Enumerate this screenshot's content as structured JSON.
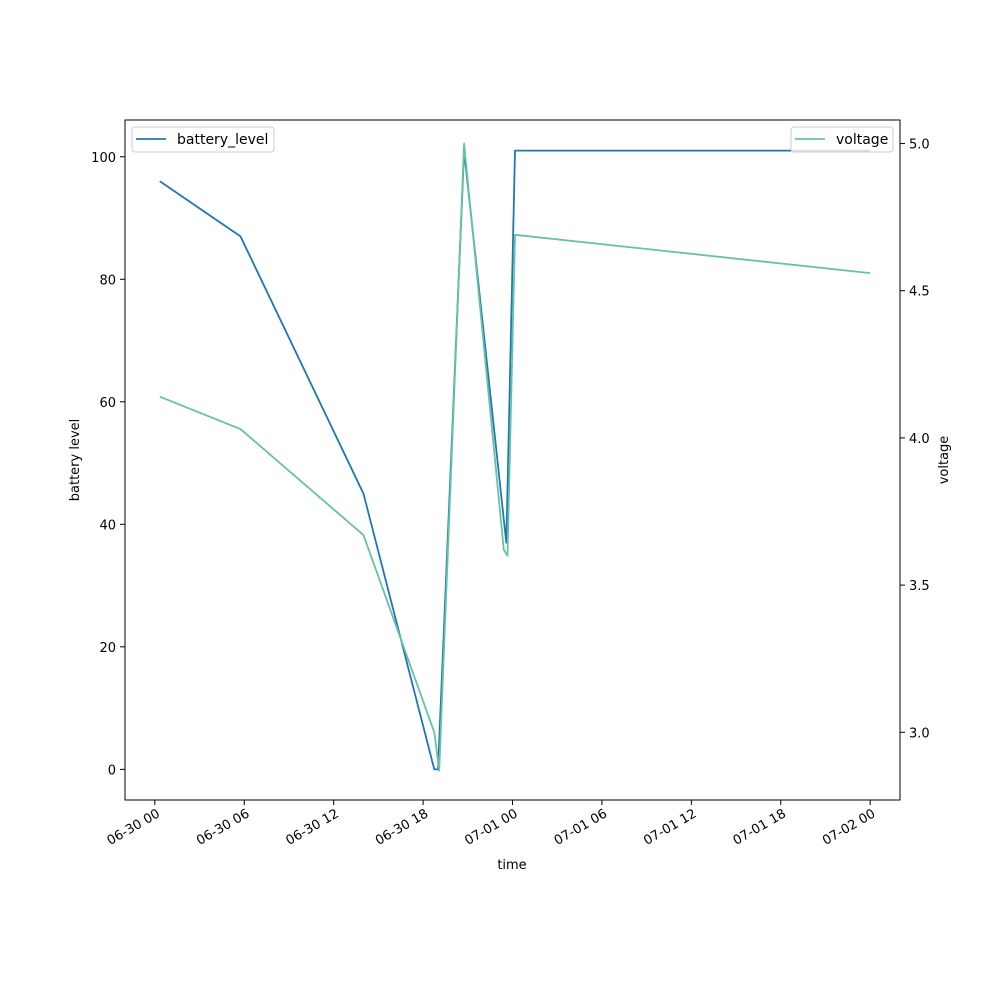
{
  "chart_data": {
    "type": "line",
    "xlabel": "time",
    "ylabel_left": "battery level",
    "ylabel_right": "voltage",
    "x_range": [
      "2023-06-29T22:00",
      "2023-07-02T02:00"
    ],
    "x_ticks": [
      {
        "t": "2023-06-30T00:00",
        "label": "06-30 00"
      },
      {
        "t": "2023-06-30T06:00",
        "label": "06-30 06"
      },
      {
        "t": "2023-06-30T12:00",
        "label": "06-30 12"
      },
      {
        "t": "2023-06-30T18:00",
        "label": "06-30 18"
      },
      {
        "t": "2023-07-01T00:00",
        "label": "07-01 00"
      },
      {
        "t": "2023-07-01T06:00",
        "label": "07-01 06"
      },
      {
        "t": "2023-07-01T12:00",
        "label": "07-01 12"
      },
      {
        "t": "2023-07-01T18:00",
        "label": "07-01 18"
      },
      {
        "t": "2023-07-02T00:00",
        "label": "07-02 00"
      }
    ],
    "ylim_left": [
      -5,
      106
    ],
    "yticks_left": [
      0,
      20,
      40,
      60,
      80,
      100
    ],
    "ylim_right": [
      2.77,
      5.08
    ],
    "yticks_right": [
      3.0,
      3.5,
      4.0,
      4.5,
      5.0
    ],
    "yticks_right_labels": [
      "3.0",
      "3.5",
      "4.0",
      "4.5",
      "5.0"
    ],
    "series": [
      {
        "name": "battery_level",
        "axis": "left",
        "color": "#1f77b4",
        "legend_position": "upper left",
        "points": [
          {
            "t": "2023-06-30T00:20",
            "v": 96
          },
          {
            "t": "2023-06-30T05:45",
            "v": 87
          },
          {
            "t": "2023-06-30T14:00",
            "v": 45
          },
          {
            "t": "2023-06-30T18:45",
            "v": 0
          },
          {
            "t": "2023-06-30T19:00",
            "v": 0
          },
          {
            "t": "2023-06-30T20:45",
            "v": 101
          },
          {
            "t": "2023-06-30T23:35",
            "v": 37
          },
          {
            "t": "2023-07-01T00:10",
            "v": 101
          },
          {
            "t": "2023-07-02T00:00",
            "v": 101
          }
        ]
      },
      {
        "name": "voltage",
        "axis": "right",
        "color": "#66c2a5",
        "legend_position": "upper right",
        "points": [
          {
            "t": "2023-06-30T00:20",
            "v": 4.14
          },
          {
            "t": "2023-06-30T05:45",
            "v": 4.03
          },
          {
            "t": "2023-06-30T14:00",
            "v": 3.67
          },
          {
            "t": "2023-06-30T18:45",
            "v": 3.0
          },
          {
            "t": "2023-06-30T19:05",
            "v": 2.87
          },
          {
            "t": "2023-06-30T20:45",
            "v": 5.0
          },
          {
            "t": "2023-06-30T23:25",
            "v": 3.62
          },
          {
            "t": "2023-06-30T23:40",
            "v": 3.6
          },
          {
            "t": "2023-07-01T00:10",
            "v": 4.69
          },
          {
            "t": "2023-07-02T00:00",
            "v": 4.56
          }
        ]
      }
    ]
  }
}
